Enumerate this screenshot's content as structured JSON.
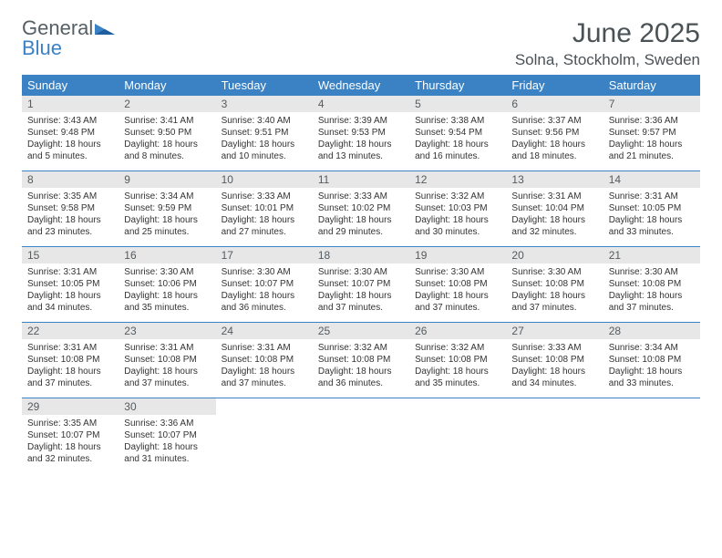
{
  "brand": {
    "general": "General",
    "blue": "Blue"
  },
  "header": {
    "month_title": "June 2025",
    "location": "Solna, Stockholm, Sweden"
  },
  "colors": {
    "header_bg": "#3a82c4",
    "header_fg": "#ffffff",
    "daynum_bg": "#e7e7e7",
    "text": "#333333",
    "brand_gray": "#555f65",
    "brand_blue": "#3a82c4",
    "row_divider": "#3a82c4",
    "page_bg": "#ffffff"
  },
  "typography": {
    "title_fontsize_pt": 22,
    "location_fontsize_pt": 13,
    "weekday_fontsize_pt": 10,
    "daynum_fontsize_pt": 9,
    "body_fontsize_pt": 7.5
  },
  "weekdays": [
    "Sunday",
    "Monday",
    "Tuesday",
    "Wednesday",
    "Thursday",
    "Friday",
    "Saturday"
  ],
  "days": [
    {
      "n": "1",
      "sunrise": "Sunrise: 3:43 AM",
      "sunset": "Sunset: 9:48 PM",
      "daylight": "Daylight: 18 hours and 5 minutes."
    },
    {
      "n": "2",
      "sunrise": "Sunrise: 3:41 AM",
      "sunset": "Sunset: 9:50 PM",
      "daylight": "Daylight: 18 hours and 8 minutes."
    },
    {
      "n": "3",
      "sunrise": "Sunrise: 3:40 AM",
      "sunset": "Sunset: 9:51 PM",
      "daylight": "Daylight: 18 hours and 10 minutes."
    },
    {
      "n": "4",
      "sunrise": "Sunrise: 3:39 AM",
      "sunset": "Sunset: 9:53 PM",
      "daylight": "Daylight: 18 hours and 13 minutes."
    },
    {
      "n": "5",
      "sunrise": "Sunrise: 3:38 AM",
      "sunset": "Sunset: 9:54 PM",
      "daylight": "Daylight: 18 hours and 16 minutes."
    },
    {
      "n": "6",
      "sunrise": "Sunrise: 3:37 AM",
      "sunset": "Sunset: 9:56 PM",
      "daylight": "Daylight: 18 hours and 18 minutes."
    },
    {
      "n": "7",
      "sunrise": "Sunrise: 3:36 AM",
      "sunset": "Sunset: 9:57 PM",
      "daylight": "Daylight: 18 hours and 21 minutes."
    },
    {
      "n": "8",
      "sunrise": "Sunrise: 3:35 AM",
      "sunset": "Sunset: 9:58 PM",
      "daylight": "Daylight: 18 hours and 23 minutes."
    },
    {
      "n": "9",
      "sunrise": "Sunrise: 3:34 AM",
      "sunset": "Sunset: 9:59 PM",
      "daylight": "Daylight: 18 hours and 25 minutes."
    },
    {
      "n": "10",
      "sunrise": "Sunrise: 3:33 AM",
      "sunset": "Sunset: 10:01 PM",
      "daylight": "Daylight: 18 hours and 27 minutes."
    },
    {
      "n": "11",
      "sunrise": "Sunrise: 3:33 AM",
      "sunset": "Sunset: 10:02 PM",
      "daylight": "Daylight: 18 hours and 29 minutes."
    },
    {
      "n": "12",
      "sunrise": "Sunrise: 3:32 AM",
      "sunset": "Sunset: 10:03 PM",
      "daylight": "Daylight: 18 hours and 30 minutes."
    },
    {
      "n": "13",
      "sunrise": "Sunrise: 3:31 AM",
      "sunset": "Sunset: 10:04 PM",
      "daylight": "Daylight: 18 hours and 32 minutes."
    },
    {
      "n": "14",
      "sunrise": "Sunrise: 3:31 AM",
      "sunset": "Sunset: 10:05 PM",
      "daylight": "Daylight: 18 hours and 33 minutes."
    },
    {
      "n": "15",
      "sunrise": "Sunrise: 3:31 AM",
      "sunset": "Sunset: 10:05 PM",
      "daylight": "Daylight: 18 hours and 34 minutes."
    },
    {
      "n": "16",
      "sunrise": "Sunrise: 3:30 AM",
      "sunset": "Sunset: 10:06 PM",
      "daylight": "Daylight: 18 hours and 35 minutes."
    },
    {
      "n": "17",
      "sunrise": "Sunrise: 3:30 AM",
      "sunset": "Sunset: 10:07 PM",
      "daylight": "Daylight: 18 hours and 36 minutes."
    },
    {
      "n": "18",
      "sunrise": "Sunrise: 3:30 AM",
      "sunset": "Sunset: 10:07 PM",
      "daylight": "Daylight: 18 hours and 37 minutes."
    },
    {
      "n": "19",
      "sunrise": "Sunrise: 3:30 AM",
      "sunset": "Sunset: 10:08 PM",
      "daylight": "Daylight: 18 hours and 37 minutes."
    },
    {
      "n": "20",
      "sunrise": "Sunrise: 3:30 AM",
      "sunset": "Sunset: 10:08 PM",
      "daylight": "Daylight: 18 hours and 37 minutes."
    },
    {
      "n": "21",
      "sunrise": "Sunrise: 3:30 AM",
      "sunset": "Sunset: 10:08 PM",
      "daylight": "Daylight: 18 hours and 37 minutes."
    },
    {
      "n": "22",
      "sunrise": "Sunrise: 3:31 AM",
      "sunset": "Sunset: 10:08 PM",
      "daylight": "Daylight: 18 hours and 37 minutes."
    },
    {
      "n": "23",
      "sunrise": "Sunrise: 3:31 AM",
      "sunset": "Sunset: 10:08 PM",
      "daylight": "Daylight: 18 hours and 37 minutes."
    },
    {
      "n": "24",
      "sunrise": "Sunrise: 3:31 AM",
      "sunset": "Sunset: 10:08 PM",
      "daylight": "Daylight: 18 hours and 37 minutes."
    },
    {
      "n": "25",
      "sunrise": "Sunrise: 3:32 AM",
      "sunset": "Sunset: 10:08 PM",
      "daylight": "Daylight: 18 hours and 36 minutes."
    },
    {
      "n": "26",
      "sunrise": "Sunrise: 3:32 AM",
      "sunset": "Sunset: 10:08 PM",
      "daylight": "Daylight: 18 hours and 35 minutes."
    },
    {
      "n": "27",
      "sunrise": "Sunrise: 3:33 AM",
      "sunset": "Sunset: 10:08 PM",
      "daylight": "Daylight: 18 hours and 34 minutes."
    },
    {
      "n": "28",
      "sunrise": "Sunrise: 3:34 AM",
      "sunset": "Sunset: 10:08 PM",
      "daylight": "Daylight: 18 hours and 33 minutes."
    },
    {
      "n": "29",
      "sunrise": "Sunrise: 3:35 AM",
      "sunset": "Sunset: 10:07 PM",
      "daylight": "Daylight: 18 hours and 32 minutes."
    },
    {
      "n": "30",
      "sunrise": "Sunrise: 3:36 AM",
      "sunset": "Sunset: 10:07 PM",
      "daylight": "Daylight: 18 hours and 31 minutes."
    }
  ],
  "layout": {
    "start_weekday_index": 0,
    "weeks": 5
  }
}
